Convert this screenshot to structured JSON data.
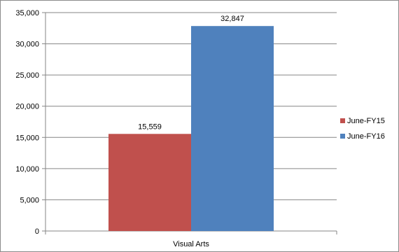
{
  "chart_data": {
    "type": "bar",
    "categories": [
      "Visual Arts"
    ],
    "series": [
      {
        "name": "June-FY15",
        "values": [
          15559
        ],
        "value_labels": [
          "15,559"
        ],
        "color": "#c0504d"
      },
      {
        "name": "June-FY16",
        "values": [
          32847
        ],
        "value_labels": [
          "32,847"
        ],
        "color": "#4f81bd"
      }
    ],
    "ylim": [
      0,
      35000
    ],
    "y_ticks": [
      0,
      5000,
      10000,
      15000,
      20000,
      25000,
      30000,
      35000
    ],
    "y_tick_labels": [
      "0",
      "5,000",
      "10,000",
      "15,000",
      "20,000",
      "25,000",
      "30,000",
      "35,000"
    ],
    "grid": true,
    "legend": "right",
    "title": "",
    "xlabel": "",
    "ylabel": ""
  }
}
